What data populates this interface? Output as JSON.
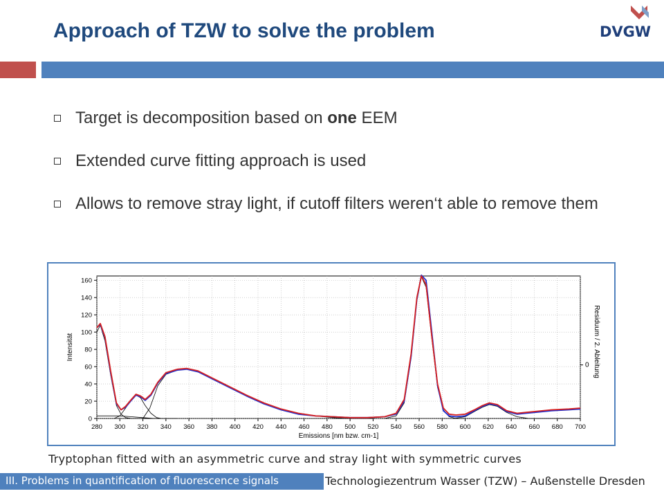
{
  "slide": {
    "title": "Approach of TZW to solve the problem",
    "logo_text": "DVGW",
    "bullets": [
      {
        "pre": "Target is decomposition based on ",
        "bold": "one",
        "post": " EEM"
      },
      {
        "pre": "Extended curve fitting approach is used",
        "bold": "",
        "post": ""
      },
      {
        "pre": "Allows to remove stray light, if cutoff filters weren‘t able to remove them",
        "bold": "",
        "post": ""
      }
    ],
    "caption": "Tryptophan fitted with an asymmetric curve and stray light with symmetric curves",
    "footer_left": "III. Problems in quantification of fluorescence signals",
    "footer_right": "Technologiezentrum Wasser (TZW) – Außenstelle Dresden"
  },
  "colors": {
    "title": "#1f497d",
    "accent_blue": "#4f81bd",
    "accent_red": "#c0504d",
    "series_measured": "#d62020",
    "series_fit": "#1c2fd0",
    "series_components": "#000000"
  },
  "chart_data": {
    "type": "line",
    "xlabel": "Emissions [nm bzw. cm-1]",
    "ylabel": "Intensität",
    "y2label": "Residuum / 2. Ableitung",
    "y2_tick": "0",
    "xlim": [
      280,
      700
    ],
    "ylim": [
      0,
      165
    ],
    "xticks": [
      280,
      300,
      320,
      340,
      360,
      380,
      400,
      420,
      440,
      460,
      480,
      500,
      520,
      540,
      560,
      580,
      600,
      620,
      640,
      660,
      680,
      700
    ],
    "yticks": [
      0,
      20,
      40,
      60,
      80,
      100,
      120,
      140,
      160
    ],
    "grid": true,
    "series": [
      {
        "color": "red",
        "points": [
          [
            280,
            105
          ],
          [
            283,
            110
          ],
          [
            287,
            95
          ],
          [
            292,
            55
          ],
          [
            297,
            18
          ],
          [
            301,
            10
          ],
          [
            305,
            14
          ],
          [
            310,
            22
          ],
          [
            314,
            28
          ],
          [
            318,
            26
          ],
          [
            322,
            22
          ],
          [
            327,
            28
          ],
          [
            333,
            42
          ],
          [
            340,
            53
          ],
          [
            350,
            57
          ],
          [
            358,
            58
          ],
          [
            368,
            55
          ],
          [
            380,
            47
          ],
          [
            395,
            37
          ],
          [
            410,
            27
          ],
          [
            425,
            18
          ],
          [
            440,
            11
          ],
          [
            455,
            6
          ],
          [
            470,
            3
          ],
          [
            485,
            2
          ],
          [
            500,
            1
          ],
          [
            515,
            1
          ],
          [
            530,
            2
          ],
          [
            540,
            6
          ],
          [
            547,
            22
          ],
          [
            553,
            75
          ],
          [
            558,
            140
          ],
          [
            562,
            165
          ],
          [
            566,
            155
          ],
          [
            571,
            95
          ],
          [
            576,
            40
          ],
          [
            581,
            12
          ],
          [
            586,
            5
          ],
          [
            592,
            4
          ],
          [
            600,
            5
          ],
          [
            608,
            10
          ],
          [
            615,
            15
          ],
          [
            621,
            18
          ],
          [
            628,
            16
          ],
          [
            636,
            9
          ],
          [
            645,
            6
          ],
          [
            660,
            8
          ],
          [
            675,
            10
          ],
          [
            690,
            11
          ],
          [
            700,
            12
          ]
        ]
      },
      {
        "color": "blue",
        "points": [
          [
            280,
            105
          ],
          [
            283,
            109
          ],
          [
            287,
            94
          ],
          [
            292,
            53
          ],
          [
            297,
            17
          ],
          [
            301,
            10
          ],
          [
            305,
            13
          ],
          [
            310,
            21
          ],
          [
            314,
            27
          ],
          [
            318,
            25
          ],
          [
            322,
            21
          ],
          [
            327,
            27
          ],
          [
            333,
            41
          ],
          [
            340,
            52
          ],
          [
            350,
            56
          ],
          [
            358,
            57
          ],
          [
            368,
            54
          ],
          [
            380,
            46
          ],
          [
            395,
            36
          ],
          [
            410,
            26
          ],
          [
            425,
            17
          ],
          [
            440,
            10
          ],
          [
            455,
            5
          ],
          [
            470,
            3
          ],
          [
            485,
            2
          ],
          [
            500,
            1
          ],
          [
            515,
            1
          ],
          [
            530,
            2
          ],
          [
            540,
            5
          ],
          [
            547,
            20
          ],
          [
            553,
            72
          ],
          [
            558,
            138
          ],
          [
            562,
            166
          ],
          [
            566,
            160
          ],
          [
            571,
            100
          ],
          [
            576,
            38
          ],
          [
            581,
            9
          ],
          [
            586,
            3
          ],
          [
            592,
            2
          ],
          [
            600,
            3
          ],
          [
            608,
            9
          ],
          [
            615,
            14
          ],
          [
            621,
            17
          ],
          [
            628,
            15
          ],
          [
            636,
            8
          ],
          [
            645,
            5
          ],
          [
            660,
            7
          ],
          [
            675,
            9
          ],
          [
            690,
            10
          ],
          [
            700,
            11
          ]
        ]
      },
      {
        "color": "black",
        "points": [
          [
            280,
            100
          ],
          [
            283,
            108
          ],
          [
            287,
            90
          ],
          [
            292,
            50
          ],
          [
            297,
            15
          ],
          [
            301,
            5
          ],
          [
            305,
            1
          ],
          [
            310,
            0
          ],
          [
            330,
            0
          ],
          [
            350,
            0
          ]
        ]
      },
      {
        "color": "black",
        "points": [
          [
            295,
            0
          ],
          [
            300,
            3
          ],
          [
            305,
            12
          ],
          [
            310,
            22
          ],
          [
            314,
            27
          ],
          [
            318,
            24
          ],
          [
            322,
            15
          ],
          [
            327,
            6
          ],
          [
            332,
            1
          ],
          [
            336,
            0
          ]
        ]
      },
      {
        "color": "black",
        "points": [
          [
            280,
            3
          ],
          [
            290,
            3
          ],
          [
            300,
            3
          ],
          [
            310,
            2
          ],
          [
            320,
            1
          ],
          [
            330,
            0
          ]
        ]
      },
      {
        "color": "black",
        "points": [
          [
            320,
            0
          ],
          [
            326,
            12
          ],
          [
            333,
            38
          ],
          [
            340,
            51
          ],
          [
            350,
            56
          ],
          [
            358,
            57
          ],
          [
            368,
            54
          ],
          [
            380,
            46
          ],
          [
            395,
            36
          ],
          [
            410,
            26
          ],
          [
            425,
            17
          ],
          [
            440,
            10
          ],
          [
            455,
            5
          ],
          [
            470,
            3
          ],
          [
            485,
            1
          ],
          [
            500,
            0
          ],
          [
            520,
            0
          ]
        ]
      },
      {
        "color": "black",
        "points": [
          [
            530,
            0
          ],
          [
            540,
            3
          ],
          [
            547,
            18
          ],
          [
            553,
            70
          ],
          [
            558,
            136
          ],
          [
            562,
            164
          ],
          [
            566,
            152
          ],
          [
            571,
            92
          ],
          [
            576,
            36
          ],
          [
            581,
            10
          ],
          [
            586,
            2
          ],
          [
            592,
            0
          ],
          [
            600,
            0
          ]
        ]
      },
      {
        "color": "black",
        "points": [
          [
            590,
            0
          ],
          [
            600,
            2
          ],
          [
            608,
            8
          ],
          [
            615,
            13
          ],
          [
            621,
            16
          ],
          [
            628,
            14
          ],
          [
            636,
            7
          ],
          [
            645,
            2
          ],
          [
            655,
            0
          ],
          [
            700,
            0
          ]
        ]
      }
    ]
  }
}
